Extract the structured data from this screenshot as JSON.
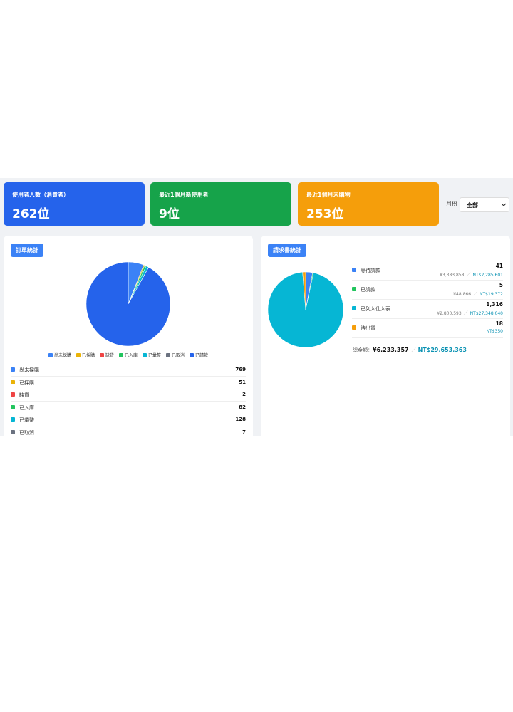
{
  "cards": [
    {
      "label": "使用者人數（消費者）",
      "value": "262位",
      "color": "#2563eb"
    },
    {
      "label": "最近1個月新使用者",
      "value": "9位",
      "color": "#16a34a"
    },
    {
      "label": "最近1個月未購物",
      "value": "253位",
      "color": "#f59e0b"
    }
  ],
  "month_filter": {
    "label": "月份",
    "selected": "全部"
  },
  "orders": {
    "title": "訂單統計",
    "type": "pie",
    "items": [
      {
        "name": "尚未採購",
        "color": "#3b82f6",
        "value": 769
      },
      {
        "name": "已採購",
        "color": "#eab308",
        "value": 51
      },
      {
        "name": "缺貨",
        "color": "#ef4444",
        "value": 2
      },
      {
        "name": "已入庫",
        "color": "#22c55e",
        "value": 82
      },
      {
        "name": "已彙整",
        "color": "#06b6d4",
        "value": 128
      },
      {
        "name": "已取消",
        "color": "#6b7280",
        "value": 7
      },
      {
        "name": "已請款",
        "color": "#2563eb",
        "value": 11800
      }
    ]
  },
  "invoices": {
    "title": "請求書統計",
    "type": "pie",
    "items": [
      {
        "name": "等待請款",
        "color": "#3b82f6",
        "value": 41,
        "yen": "¥3,383,858",
        "ntd": "NT$2,285,601"
      },
      {
        "name": "已請款",
        "color": "#22c55e",
        "value": 5,
        "yen": "¥48,866",
        "ntd": "NT$19,372"
      },
      {
        "name": "已列入仕入表",
        "color": "#06b6d4",
        "value": {
          "value": 1316,
          "label": "1,316"
        },
        "yen": "¥2,800,593",
        "ntd": "NT$27,348,040"
      },
      {
        "name": "待出貨",
        "color": "#f59e0b",
        "value": 18,
        "ntd": "NT$350"
      }
    ],
    "separator": "／",
    "total": {
      "label": "總金額：",
      "yen": "¥6,233,357",
      "ntd": "NT$29,653,363"
    }
  }
}
